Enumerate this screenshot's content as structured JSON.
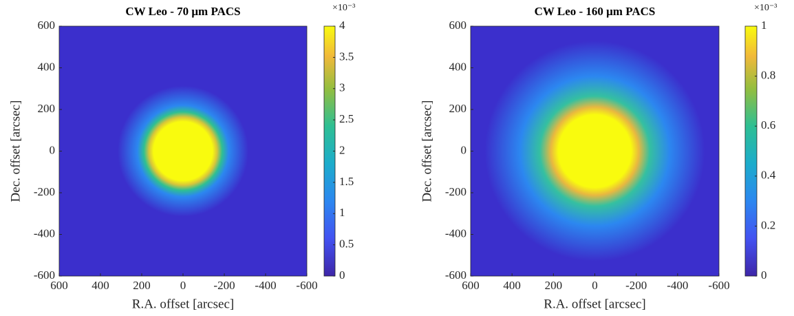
{
  "chart_data": [
    {
      "type": "heatmap",
      "title": "CW Leo - 70 μm PACS",
      "xlabel": "R.A. offset [arcsec]",
      "ylabel": "Dec. offset [arcsec]",
      "xlim": [
        600,
        -600
      ],
      "xticks": [
        600,
        400,
        200,
        0,
        -200,
        -400,
        -600
      ],
      "ylim": [
        -600,
        600
      ],
      "yticks": [
        -600,
        -400,
        -200,
        0,
        200,
        400,
        600
      ],
      "colorbar_lim": [
        0,
        4
      ],
      "colorbar_ticks": [
        0,
        0.5,
        1,
        1.5,
        2,
        2.5,
        3,
        3.5,
        4
      ],
      "colorbar_multiplier": "×10⁻³",
      "colormap": "parula"
    },
    {
      "type": "heatmap",
      "title": "CW Leo - 160 μm PACS",
      "xlabel": "R.A. offset [arcsec]",
      "ylabel": "Dec. offset [arcsec]",
      "xlim": [
        600,
        -600
      ],
      "xticks": [
        600,
        400,
        200,
        0,
        -200,
        -400,
        -600
      ],
      "ylim": [
        -600,
        600
      ],
      "yticks": [
        -600,
        -400,
        -200,
        0,
        200,
        400,
        600
      ],
      "colorbar_lim": [
        0,
        1
      ],
      "colorbar_ticks": [
        0,
        0.2,
        0.4,
        0.6,
        0.8,
        1
      ],
      "colorbar_multiplier": "×10⁻³",
      "colormap": "parula"
    }
  ]
}
